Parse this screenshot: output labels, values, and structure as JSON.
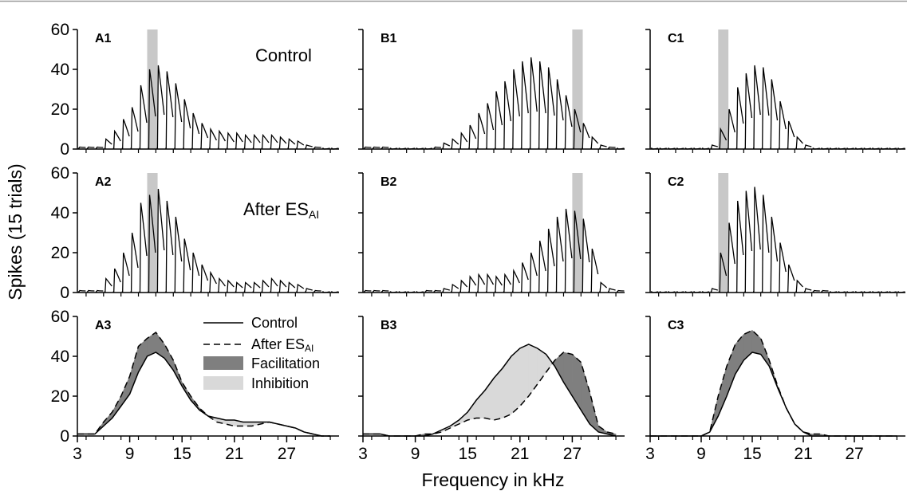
{
  "chart_data": {
    "type": "line",
    "y_axis_label": "Spikes (15 trials)",
    "x_axis_label": "Frequency in kHz",
    "xlim": [
      3,
      33
    ],
    "ylim": [
      0,
      60
    ],
    "x_ticks": [
      3,
      9,
      15,
      21,
      27
    ],
    "y_ticks": [
      0,
      20,
      40,
      60
    ],
    "condition_labels": {
      "control": "Control",
      "after_main": "After ES",
      "after_sub": "AI"
    },
    "legend": {
      "control": "Control",
      "after_main": "After ES",
      "after_sub": "AI",
      "facilitation": "Facilitation",
      "inhibition": "Inhibition"
    },
    "colors": {
      "facilitation": "#7f7f7f",
      "inhibition": "#d9d9d9",
      "stimulation_band": "#c8c8c8",
      "line": "#000000"
    },
    "panels": [
      {
        "column": "A",
        "labels": [
          "A1",
          "A2",
          "A3"
        ],
        "stim_freq": [
          11.0,
          12.2
        ],
        "freq": [
          3,
          4,
          5,
          6,
          7,
          8,
          9,
          10,
          11,
          12,
          13,
          14,
          15,
          16,
          17,
          18,
          19,
          20,
          21,
          22,
          23,
          24,
          25,
          26,
          27,
          28,
          29,
          30,
          31,
          32
        ],
        "control": [
          1,
          1,
          1,
          5,
          9,
          15,
          21,
          32,
          40,
          42,
          39,
          33,
          25,
          18,
          13,
          10,
          9,
          8,
          8,
          7,
          7,
          7,
          7,
          6,
          5,
          4,
          2,
          1,
          0,
          0
        ],
        "after": [
          1,
          1,
          1,
          7,
          12,
          20,
          30,
          45,
          49,
          52,
          46,
          38,
          27,
          20,
          14,
          10,
          7,
          6,
          5,
          5,
          5,
          6,
          7,
          6,
          5,
          4,
          2,
          1,
          0,
          0
        ]
      },
      {
        "column": "B",
        "labels": [
          "B1",
          "B2",
          "B3"
        ],
        "stim_freq": [
          27.0,
          28.2
        ],
        "freq": [
          3,
          4,
          5,
          6,
          7,
          8,
          9,
          10,
          11,
          12,
          13,
          14,
          15,
          16,
          17,
          18,
          19,
          20,
          21,
          22,
          23,
          24,
          25,
          26,
          27,
          28,
          29,
          30,
          31,
          32
        ],
        "control": [
          1,
          1,
          1,
          0,
          0,
          0,
          0,
          0,
          1,
          3,
          5,
          8,
          12,
          18,
          23,
          29,
          34,
          40,
          44,
          46,
          44,
          41,
          35,
          27,
          20,
          13,
          6,
          2,
          1,
          0
        ],
        "after": [
          1,
          1,
          1,
          0,
          0,
          0,
          0,
          1,
          1,
          2,
          4,
          6,
          8,
          9,
          9,
          8,
          9,
          11,
          15,
          20,
          26,
          32,
          38,
          42,
          41,
          37,
          22,
          5,
          2,
          1
        ]
      },
      {
        "column": "C",
        "labels": [
          "C1",
          "C2",
          "C3"
        ],
        "stim_freq": [
          11.0,
          12.2
        ],
        "freq": [
          3,
          4,
          5,
          6,
          7,
          8,
          9,
          10,
          11,
          12,
          13,
          14,
          15,
          16,
          17,
          18,
          19,
          20,
          21,
          22,
          23,
          24,
          25,
          26,
          27,
          28,
          29,
          30,
          31,
          32
        ],
        "control": [
          0,
          0,
          0,
          0,
          0,
          0,
          0,
          2,
          10,
          20,
          31,
          38,
          42,
          41,
          35,
          24,
          14,
          6,
          2,
          0,
          0,
          0,
          0,
          0,
          0,
          0,
          0,
          0,
          0,
          0
        ],
        "after": [
          0,
          0,
          0,
          0,
          0,
          0,
          0,
          2,
          20,
          35,
          46,
          51,
          53,
          49,
          38,
          25,
          14,
          6,
          2,
          1,
          1,
          0,
          0,
          0,
          0,
          0,
          0,
          0,
          0,
          0
        ]
      }
    ]
  }
}
